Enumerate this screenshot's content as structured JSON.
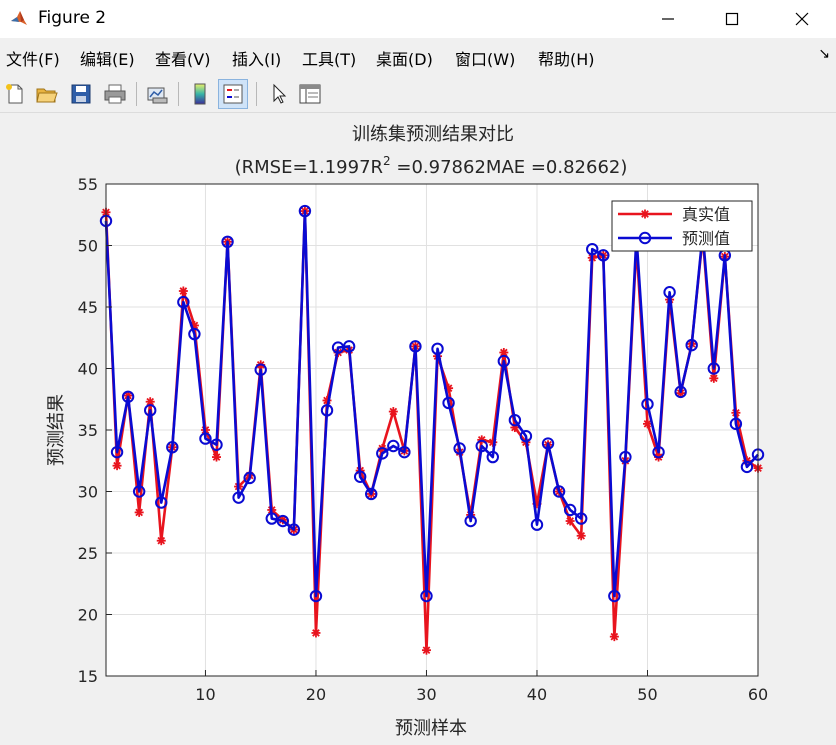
{
  "window": {
    "title": "Figure 2",
    "minimize_icon": "minimize-icon",
    "maximize_icon": "maximize-icon",
    "close_icon": "close-icon"
  },
  "menu": [
    {
      "label": "文件(F)"
    },
    {
      "label": "编辑(E)"
    },
    {
      "label": "查看(V)"
    },
    {
      "label": "插入(I)"
    },
    {
      "label": "工具(T)"
    },
    {
      "label": "桌面(D)"
    },
    {
      "label": "窗口(W)"
    },
    {
      "label": "帮助(H)"
    }
  ],
  "toolbar": {
    "icons": [
      "new-figure-icon",
      "open-file-icon",
      "save-icon",
      "print-icon",
      "link-plot-icon",
      "colorbar-icon",
      "legend-icon",
      "pointer-icon",
      "property-editor-icon"
    ]
  },
  "chart_data": {
    "type": "line",
    "title": "训练集预测结果对比",
    "subtitle": "(RMSE=1.1997R",
    "subtitle_sup": "2",
    "subtitle_rest": " =0.97862MAE =0.82662)",
    "xlabel": "预测样本",
    "ylabel": "预测结果",
    "xlim": [
      1,
      60
    ],
    "ylim": [
      15,
      55
    ],
    "xticks": [
      10,
      20,
      30,
      40,
      50,
      60
    ],
    "yticks": [
      15,
      20,
      25,
      30,
      35,
      40,
      45,
      50,
      55
    ],
    "grid": true,
    "legend_position": "top-right",
    "x": [
      1,
      2,
      3,
      4,
      5,
      6,
      7,
      8,
      9,
      10,
      11,
      12,
      13,
      14,
      15,
      16,
      17,
      18,
      19,
      20,
      21,
      22,
      23,
      24,
      25,
      26,
      27,
      28,
      29,
      30,
      31,
      32,
      33,
      34,
      35,
      36,
      37,
      38,
      39,
      40,
      41,
      42,
      43,
      44,
      45,
      46,
      47,
      48,
      49,
      50,
      51,
      52,
      53,
      54,
      55,
      56,
      57,
      58,
      59,
      60
    ],
    "series": [
      {
        "name": "真实值",
        "color": "#e8141e",
        "marker": "asterisk",
        "values": [
          52.7,
          32.1,
          37.8,
          28.3,
          37.3,
          26.0,
          33.6,
          46.3,
          43.5,
          35.0,
          32.8,
          50.3,
          30.4,
          31.3,
          40.3,
          28.5,
          27.7,
          26.9,
          52.8,
          18.5,
          37.4,
          41.3,
          41.5,
          31.7,
          29.8,
          33.5,
          36.5,
          33.3,
          41.8,
          17.1,
          41.0,
          38.4,
          33.2,
          28.1,
          34.2,
          34.0,
          41.3,
          35.2,
          34.0,
          29.0,
          33.8,
          30.0,
          27.6,
          26.4,
          49.0,
          49.2,
          18.2,
          32.5,
          50.0,
          35.5,
          32.8,
          45.6,
          38.0,
          42.0,
          50.7,
          39.2,
          49.1,
          36.4,
          32.5,
          31.9
        ]
      },
      {
        "name": "预测值",
        "color": "#0a0ad2",
        "marker": "circle",
        "values": [
          52.0,
          33.2,
          37.7,
          30.0,
          36.6,
          29.1,
          33.6,
          45.4,
          42.8,
          34.3,
          33.8,
          50.3,
          29.5,
          31.1,
          39.9,
          27.8,
          27.6,
          26.9,
          52.8,
          21.5,
          36.6,
          41.7,
          41.8,
          31.2,
          29.8,
          33.1,
          33.7,
          33.2,
          41.8,
          21.5,
          41.6,
          37.2,
          33.5,
          27.6,
          33.7,
          32.8,
          40.6,
          35.8,
          34.5,
          27.3,
          33.9,
          30.0,
          28.5,
          27.8,
          49.7,
          49.2,
          21.5,
          32.8,
          50.7,
          37.1,
          33.2,
          46.2,
          38.1,
          41.9,
          51.0,
          40.0,
          49.2,
          35.5,
          32.0,
          33.0
        ]
      }
    ]
  }
}
